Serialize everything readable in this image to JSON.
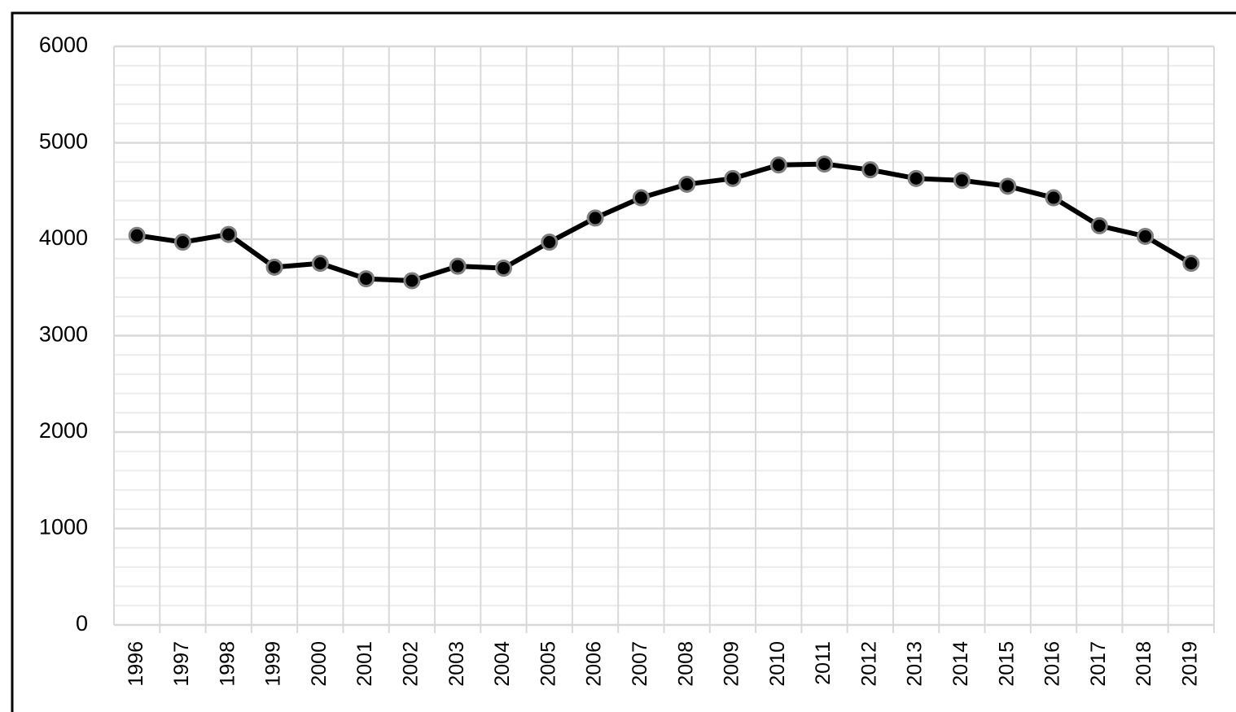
{
  "chart_data": {
    "type": "line",
    "categories": [
      "1996",
      "1997",
      "1998",
      "1999",
      "2000",
      "2001",
      "2002",
      "2003",
      "2004",
      "2005",
      "2006",
      "2007",
      "2008",
      "2009",
      "2010",
      "2011",
      "2012",
      "2013",
      "2014",
      "2015",
      "2016",
      "2017",
      "2018",
      "2019"
    ],
    "series": [
      {
        "color": "#000000",
        "values": [
          4040,
          3970,
          4050,
          3710,
          3750,
          3590,
          3570,
          3720,
          3700,
          3970,
          4220,
          4430,
          4570,
          4630,
          4770,
          4780,
          4720,
          4630,
          4610,
          4550,
          4430,
          4140,
          4030,
          3750
        ]
      }
    ],
    "ylim": [
      0,
      6000
    ],
    "yticks": [
      0,
      1000,
      2000,
      3000,
      4000,
      5000,
      6000
    ],
    "grid": true,
    "minor_grid": true
  }
}
